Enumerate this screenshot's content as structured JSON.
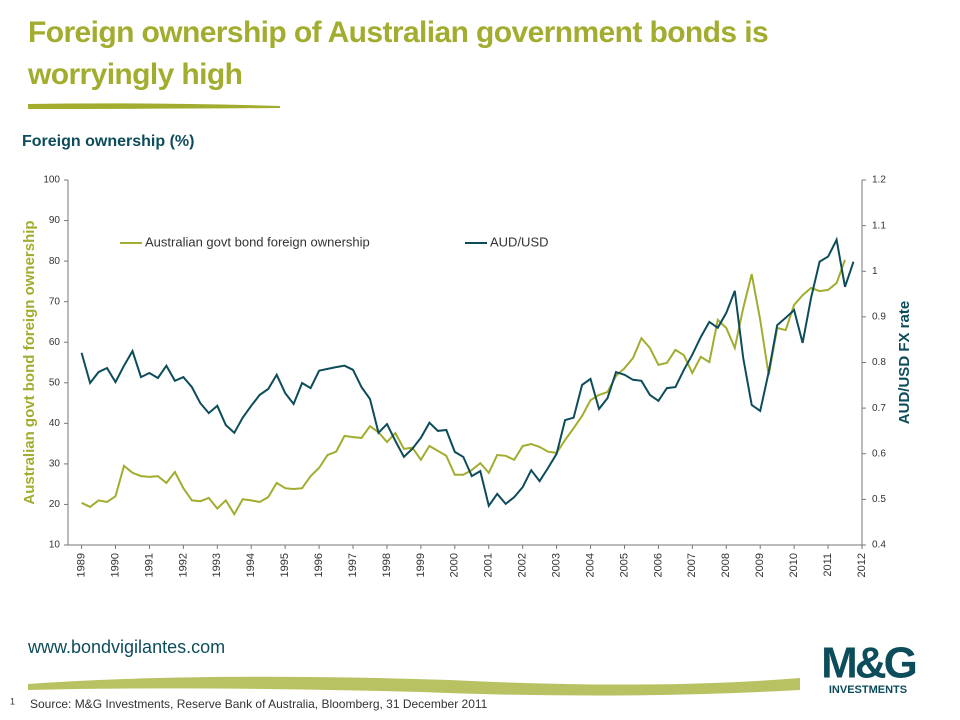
{
  "header": {
    "title": "Foreign ownership of Australian government bonds is worryingly high"
  },
  "chart_data": {
    "type": "line",
    "subtitle": "Foreign ownership (%)",
    "y_label": "Australian govt bond foreign ownership",
    "y2_label": "AUD/USD FX rate",
    "x": [
      1989,
      1989.25,
      1989.5,
      1989.75,
      1990,
      1990.25,
      1990.5,
      1990.75,
      1991,
      1991.25,
      1991.5,
      1991.75,
      1992,
      1992.25,
      1992.5,
      1992.75,
      1993,
      1993.25,
      1993.5,
      1993.75,
      1994,
      1994.25,
      1994.5,
      1994.75,
      1995,
      1995.25,
      1995.5,
      1995.75,
      1996,
      1996.25,
      1996.5,
      1996.75,
      1997,
      1997.25,
      1997.5,
      1997.75,
      1998,
      1998.25,
      1998.5,
      1998.75,
      1999,
      1999.25,
      1999.5,
      1999.75,
      2000,
      2000.25,
      2000.5,
      2000.75,
      2001,
      2001.25,
      2001.5,
      2001.75,
      2002,
      2002.25,
      2002.5,
      2002.75,
      2003,
      2003.25,
      2003.5,
      2003.75,
      2004,
      2004.25,
      2004.5,
      2004.75,
      2005,
      2005.25,
      2005.5,
      2005.75,
      2006,
      2006.25,
      2006.5,
      2006.75,
      2007,
      2007.25,
      2007.5,
      2007.75,
      2008,
      2008.25,
      2008.5,
      2008.75,
      2009,
      2009.25,
      2009.5,
      2009.75,
      2010,
      2010.25,
      2010.5,
      2010.75,
      2011,
      2011.25,
      2011.5,
      2011.75
    ],
    "series": [
      {
        "name": "Australian govt bond foreign ownership",
        "color": "#a2ad2f",
        "axis": "y",
        "values": [
          20.4,
          19.4,
          21,
          20.6,
          22,
          29.5,
          27.8,
          27,
          26.8,
          27,
          25.3,
          28,
          24,
          21,
          20.8,
          21.6,
          19,
          21,
          17.6,
          21.3,
          21,
          20.6,
          21.8,
          25.3,
          24,
          23.8,
          24,
          27,
          29,
          32.2,
          33,
          36.9,
          36.6,
          36.4,
          39.3,
          37.8,
          35.4,
          37.6,
          33.7,
          34,
          31,
          34.4,
          33.2,
          32,
          27.3,
          27.3,
          28.5,
          30.2,
          27.8,
          32.2,
          32,
          31,
          34.4,
          34.9,
          34.2,
          33,
          32.7,
          35.9,
          38.8,
          41.8,
          45.7,
          47,
          47.7,
          51.7,
          53.6,
          56.1,
          61,
          58.6,
          54.4,
          54.9,
          58.1,
          56.8,
          52.4,
          56.4,
          55.1,
          65.5,
          63.5,
          58.6,
          68.4,
          76.8,
          65.5,
          51.9,
          63.5,
          63,
          69.2,
          71.6,
          73.4,
          72.6,
          72.9,
          74.6,
          80.3,
          null
        ]
      },
      {
        "name": "AUD/USD",
        "color": "#0d4c5a",
        "axis": "y2",
        "values": [
          0.821,
          0.755,
          0.779,
          0.788,
          0.757,
          0.793,
          0.825,
          0.768,
          0.777,
          0.766,
          0.793,
          0.76,
          0.768,
          0.746,
          0.711,
          0.689,
          0.705,
          0.663,
          0.646,
          0.679,
          0.705,
          0.729,
          0.742,
          0.773,
          0.733,
          0.709,
          0.755,
          0.744,
          0.782,
          0.786,
          0.79,
          0.793,
          0.784,
          0.746,
          0.72,
          0.646,
          0.665,
          0.628,
          0.593,
          0.611,
          0.635,
          0.668,
          0.65,
          0.652,
          0.604,
          0.593,
          0.551,
          0.562,
          0.486,
          0.512,
          0.49,
          0.505,
          0.527,
          0.564,
          0.54,
          0.569,
          0.6,
          0.674,
          0.679,
          0.751,
          0.764,
          0.698,
          0.722,
          0.779,
          0.773,
          0.762,
          0.76,
          0.729,
          0.716,
          0.744,
          0.746,
          0.784,
          0.817,
          0.856,
          0.889,
          0.876,
          0.909,
          0.957,
          0.81,
          0.707,
          0.694,
          0.779,
          0.882,
          0.898,
          0.915,
          0.843,
          0.942,
          1.021,
          1.032,
          1.069,
          0.966,
          1.021
        ]
      }
    ],
    "xlim": [
      1988.6,
      2012
    ],
    "xticks": [
      1989,
      1990,
      1991,
      1992,
      1993,
      1994,
      1995,
      1996,
      1997,
      1998,
      1999,
      2000,
      2001,
      2002,
      2003,
      2004,
      2005,
      2006,
      2007,
      2008,
      2009,
      2010,
      2011,
      2012
    ],
    "ylim": [
      10,
      100
    ],
    "yticks": [
      10,
      20,
      30,
      40,
      50,
      60,
      70,
      80,
      90,
      100
    ],
    "y2lim": [
      0.4,
      1.2
    ],
    "y2ticks": [
      0.4,
      0.5,
      0.6,
      0.7,
      0.8,
      0.9,
      1,
      1.1,
      1.2
    ],
    "grid": false,
    "legend": "top"
  },
  "footer": {
    "url": "www.bondvigilantes.com",
    "page_number": "1",
    "source": "Source: M&G Investments, Reserve Bank of Australia, Bloomberg, 31 December 2011"
  },
  "logo": {
    "mark": "M&G",
    "text": "INVESTMENTS"
  }
}
